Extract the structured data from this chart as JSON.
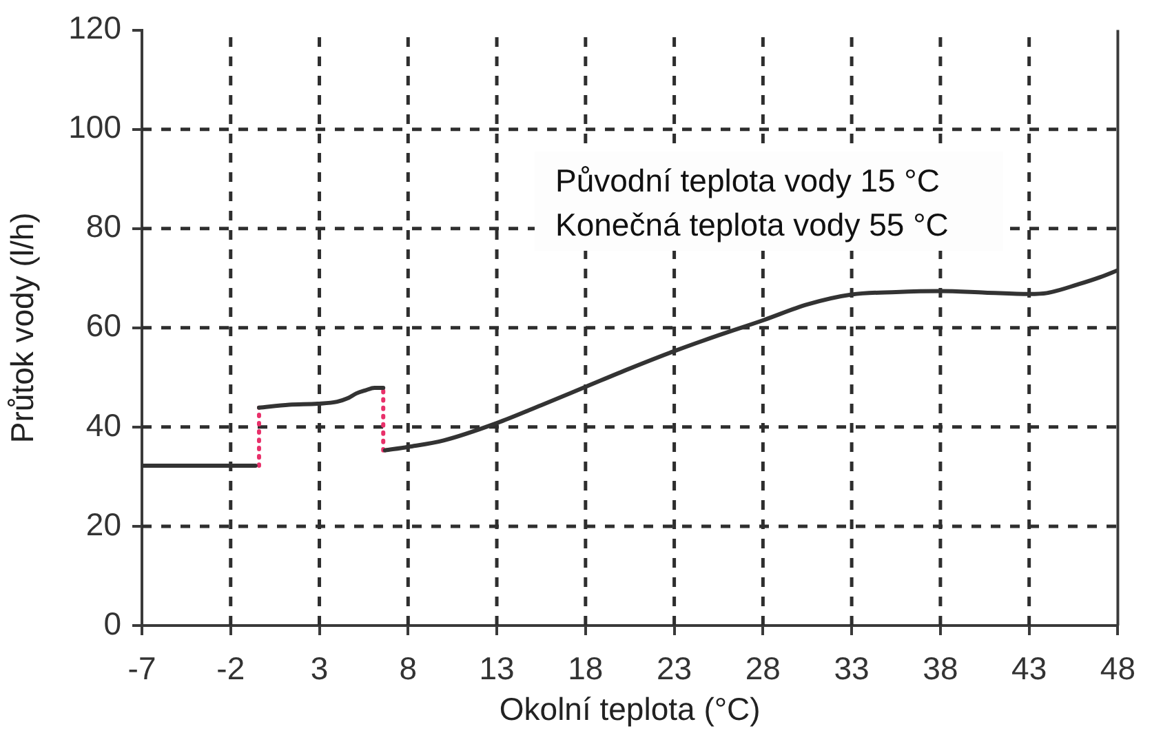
{
  "chart_data": {
    "type": "line",
    "xlabel": "Okolní teplota (°C)",
    "ylabel": "Průtok vody (l/h)",
    "annotations": [
      "Původní teplota vody 15 °C",
      "Konečná teplota vody 55 °C"
    ],
    "xlim": [
      -7,
      48
    ],
    "xticks": [
      -7,
      -2,
      3,
      8,
      13,
      18,
      23,
      28,
      33,
      38,
      43,
      48
    ],
    "ylim": [
      0,
      120
    ],
    "yticks": [
      0,
      20,
      40,
      60,
      80,
      100,
      120
    ],
    "grid": true,
    "marker": "none",
    "series": [
      {
        "color": "#333333",
        "x": [
          -7,
          -0.6,
          -0.5,
          -0.4,
          1.3,
          2.9,
          4,
          4.6,
          5.1,
          5.6,
          6.1,
          6.6,
          6.65,
          6.7,
          8,
          10,
          13,
          15.5,
          18,
          20.5,
          23,
          25.5,
          28,
          30.5,
          33,
          35.5,
          38,
          40.5,
          43,
          44,
          45.8,
          47,
          48
        ],
        "values": [
          32.2,
          32.2,
          null,
          43.9,
          44.5,
          44.7,
          45.1,
          45.8,
          46.8,
          47.4,
          47.9,
          47.9,
          null,
          35.3,
          36,
          37.3,
          40.8,
          44.4,
          48.1,
          51.8,
          55.3,
          58.5,
          61.5,
          64.7,
          66.7,
          67.2,
          67.4,
          67.1,
          66.8,
          67,
          68.8,
          70.2,
          71.6
        ]
      },
      {
        "color": "#e8306a",
        "line_style": "dotted",
        "x": [
          -0.4,
          -0.4
        ],
        "values": [
          32.2,
          43.9
        ]
      },
      {
        "color": "#e8306a",
        "line_style": "dotted",
        "x": [
          6.6,
          6.6
        ],
        "values": [
          35.3,
          47.9
        ]
      }
    ]
  }
}
